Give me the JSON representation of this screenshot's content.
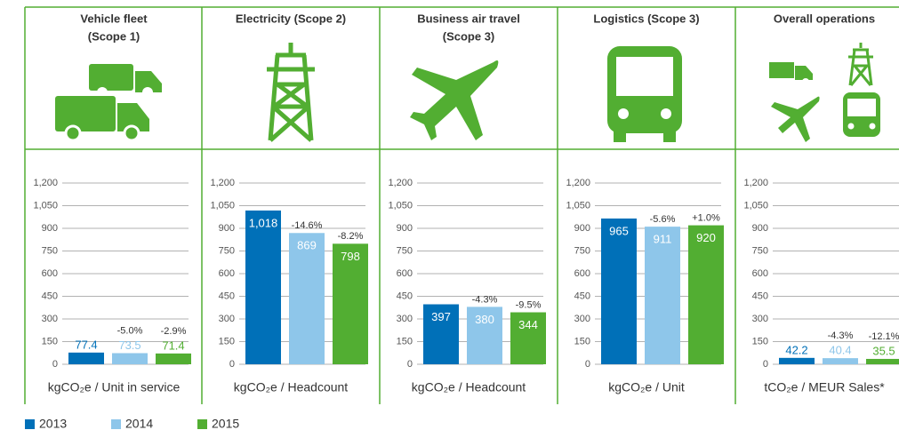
{
  "legend": {
    "items": [
      "2013",
      "2014",
      "2015"
    ],
    "colors": [
      "#0070b8",
      "#8ec6ea",
      "#52ae32"
    ]
  },
  "chart_data": [
    {
      "type": "bar",
      "title": [
        "Vehicle fleet",
        "(Scope 1)"
      ],
      "axis_label": "kgCO₂e / Unit in service",
      "values": [
        77.4,
        73.5,
        71.4
      ],
      "value_labels": [
        "77.4",
        "73.5",
        "71.4"
      ],
      "changes": [
        null,
        "-5.0%",
        "-2.9%"
      ],
      "ylim": [
        0,
        1200
      ],
      "yticks": [
        0,
        150,
        300,
        450,
        600,
        750,
        900,
        {
          "value": 1050,
          "label": "1,050"
        },
        {
          "value": 1200,
          "label": "1,200"
        }
      ],
      "grid": true
    },
    {
      "type": "bar",
      "title": [
        "Electricity (Scope 2)"
      ],
      "axis_label": "kgCO₂e / Headcount",
      "values": [
        1018,
        869,
        798
      ],
      "value_labels": [
        "1,018",
        "869",
        "798"
      ],
      "changes": [
        null,
        "-14.6%",
        "-8.2%"
      ],
      "ylim": [
        0,
        1200
      ],
      "yticks": [
        0,
        150,
        300,
        450,
        600,
        750,
        900,
        {
          "value": 1050,
          "label": "1,050"
        },
        {
          "value": 1200,
          "label": "1,200"
        }
      ],
      "grid": true
    },
    {
      "type": "bar",
      "title": [
        "Business air travel",
        "(Scope 3)"
      ],
      "axis_label": "kgCO₂e / Headcount",
      "values": [
        397,
        380,
        344
      ],
      "value_labels": [
        "397",
        "380",
        "344"
      ],
      "changes": [
        null,
        "-4.3%",
        "-9.5%"
      ],
      "ylim": [
        0,
        1200
      ],
      "yticks": [
        0,
        150,
        300,
        450,
        600,
        750,
        900,
        {
          "value": 1050,
          "label": "1,050"
        },
        {
          "value": 1200,
          "label": "1,200"
        }
      ],
      "grid": true
    },
    {
      "type": "bar",
      "title": [
        "Logistics (Scope 3)"
      ],
      "axis_label": "kgCO₂e / Unit",
      "values": [
        965,
        911,
        920
      ],
      "value_labels": [
        "965",
        "911",
        "920"
      ],
      "changes": [
        null,
        "-5.6%",
        "+1.0%"
      ],
      "ylim": [
        0,
        1200
      ],
      "yticks": [
        0,
        150,
        300,
        450,
        600,
        750,
        900,
        {
          "value": 1050,
          "label": "1,050"
        },
        {
          "value": 1200,
          "label": "1,200"
        }
      ],
      "grid": true
    },
    {
      "type": "bar",
      "title": [
        "Overall operations"
      ],
      "axis_label": "tCO₂e / MEUR Sales*",
      "values": [
        42.2,
        40.4,
        35.5
      ],
      "value_labels": [
        "42.2",
        "40.4",
        "35.5"
      ],
      "changes": [
        null,
        "-4.3%",
        "-12.1%"
      ],
      "ylim": [
        0,
        1200
      ],
      "yticks": [
        0,
        150,
        300,
        450,
        600,
        750,
        900,
        {
          "value": 1050,
          "label": "1,050"
        },
        {
          "value": 1200,
          "label": "1,200"
        }
      ],
      "grid": true
    }
  ]
}
